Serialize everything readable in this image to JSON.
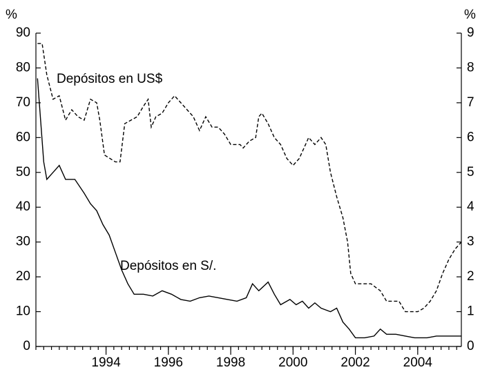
{
  "chart_data": {
    "type": "line",
    "x_unit_label": "%",
    "y2_unit_label": "%",
    "xlim": [
      1991.75,
      2005.4
    ],
    "xticks": [
      1994,
      1996,
      1998,
      2000,
      2002,
      2004
    ],
    "ylim": [
      0,
      90
    ],
    "yticks": [
      0,
      10,
      20,
      30,
      40,
      50,
      60,
      70,
      80,
      90
    ],
    "y2lim": [
      0,
      9
    ],
    "y2ticks": [
      0,
      1,
      2,
      3,
      4,
      5,
      6,
      7,
      8,
      9
    ],
    "grid": false,
    "annotations": [
      "Depósitos en US$",
      "Depósitos en S/."
    ],
    "series": [
      {
        "name": "Depósitos en S/.",
        "color": "#000000",
        "dash": false,
        "x": [
          1991.8,
          1992.0,
          1992.1,
          1992.3,
          1992.5,
          1992.7,
          1993.0,
          1993.3,
          1993.5,
          1993.7,
          1993.9,
          1994.1,
          1994.3,
          1994.5,
          1994.7,
          1994.9,
          1995.2,
          1995.5,
          1995.8,
          1996.1,
          1996.4,
          1996.7,
          1997.0,
          1997.3,
          1997.6,
          1997.9,
          1998.2,
          1998.5,
          1998.7,
          1998.9,
          1999.2,
          1999.4,
          1999.6,
          1999.9,
          2000.1,
          2000.3,
          2000.5,
          2000.7,
          2000.9,
          2001.2,
          2001.4,
          2001.6,
          2001.8,
          2002.0,
          2002.3,
          2002.6,
          2002.8,
          2003.0,
          2003.3,
          2003.6,
          2003.9,
          2004.3,
          2004.6,
          2005.0,
          2005.4
        ],
        "values": [
          77,
          53,
          48,
          50,
          52,
          48,
          48,
          44,
          41,
          39,
          35,
          32,
          27,
          22,
          18,
          15,
          15,
          14.5,
          16,
          15,
          13.5,
          13,
          14,
          14.5,
          14,
          13.5,
          13,
          14,
          18,
          16,
          18.5,
          15,
          12,
          13.5,
          12,
          13,
          11,
          12.5,
          11,
          10,
          11,
          7,
          5,
          2.5,
          2.5,
          3,
          5,
          3.5,
          3.5,
          3,
          2.5,
          2.5,
          3,
          3,
          3
        ]
      },
      {
        "name": "Depósitos en US$",
        "color": "#000000",
        "dash": true,
        "axis": "y2",
        "x": [
          1991.8,
          1991.95,
          1992.1,
          1992.3,
          1992.5,
          1992.7,
          1992.9,
          1993.1,
          1993.3,
          1993.5,
          1993.7,
          1993.8,
          1993.95,
          1994.3,
          1994.45,
          1994.6,
          1994.8,
          1995.0,
          1995.2,
          1995.35,
          1995.45,
          1995.6,
          1995.8,
          1996.0,
          1996.2,
          1996.4,
          1996.6,
          1996.8,
          1997.0,
          1997.2,
          1997.4,
          1997.6,
          1997.8,
          1998.0,
          1998.3,
          1998.4,
          1998.6,
          1998.8,
          1998.9,
          1999.0,
          1999.2,
          1999.4,
          1999.6,
          1999.8,
          2000.0,
          2000.2,
          2000.4,
          2000.5,
          2000.7,
          2000.9,
          2001.05,
          2001.2,
          2001.4,
          2001.6,
          2001.75,
          2001.85,
          2002.0,
          2002.5,
          2002.8,
          2003.0,
          2003.4,
          2003.6,
          2004.0,
          2004.2,
          2004.4,
          2004.6,
          2004.8,
          2005.0,
          2005.2,
          2005.4
        ],
        "values": [
          8.7,
          8.7,
          7.8,
          7.1,
          7.2,
          6.5,
          6.8,
          6.6,
          6.5,
          7.1,
          7.0,
          6.5,
          5.5,
          5.3,
          5.3,
          6.4,
          6.5,
          6.6,
          6.9,
          7.1,
          6.3,
          6.6,
          6.7,
          7.0,
          7.2,
          7.0,
          6.8,
          6.6,
          6.2,
          6.6,
          6.3,
          6.3,
          6.1,
          5.8,
          5.8,
          5.7,
          5.9,
          6.0,
          6.6,
          6.7,
          6.4,
          6.0,
          5.8,
          5.4,
          5.2,
          5.4,
          5.8,
          6.0,
          5.8,
          6.0,
          5.8,
          5.0,
          4.3,
          3.7,
          3.0,
          2.1,
          1.8,
          1.8,
          1.6,
          1.3,
          1.3,
          1.0,
          1.0,
          1.1,
          1.3,
          1.6,
          2.1,
          2.5,
          2.8,
          3.0
        ]
      }
    ]
  }
}
